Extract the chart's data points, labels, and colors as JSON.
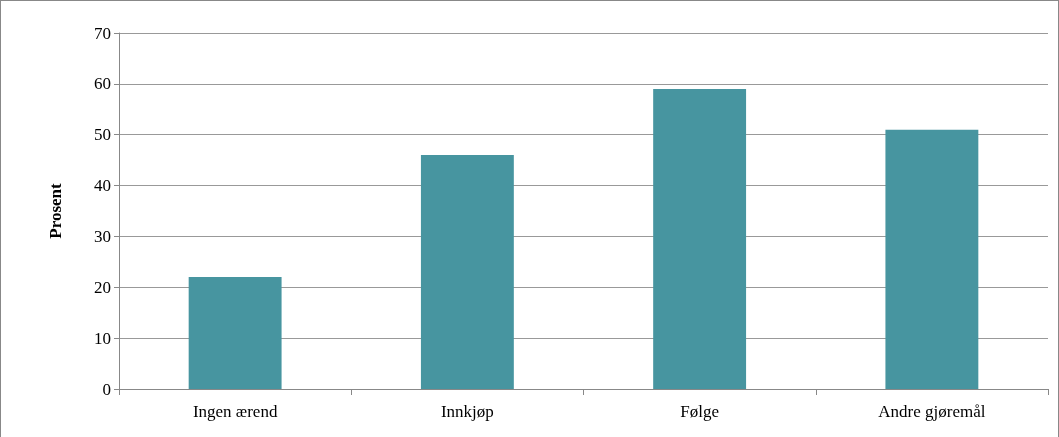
{
  "chart_data": {
    "type": "bar",
    "ylabel": "Prosent",
    "categories": [
      "Ingen ærend",
      "Innkjøp",
      "Følge",
      "Andre gjøremål"
    ],
    "values": [
      22,
      46,
      59,
      51
    ],
    "color": "#4795a0",
    "ylim": [
      0,
      70
    ],
    "yticks": [
      0,
      10,
      20,
      30,
      40,
      50,
      60,
      70
    ],
    "grid": "y"
  }
}
